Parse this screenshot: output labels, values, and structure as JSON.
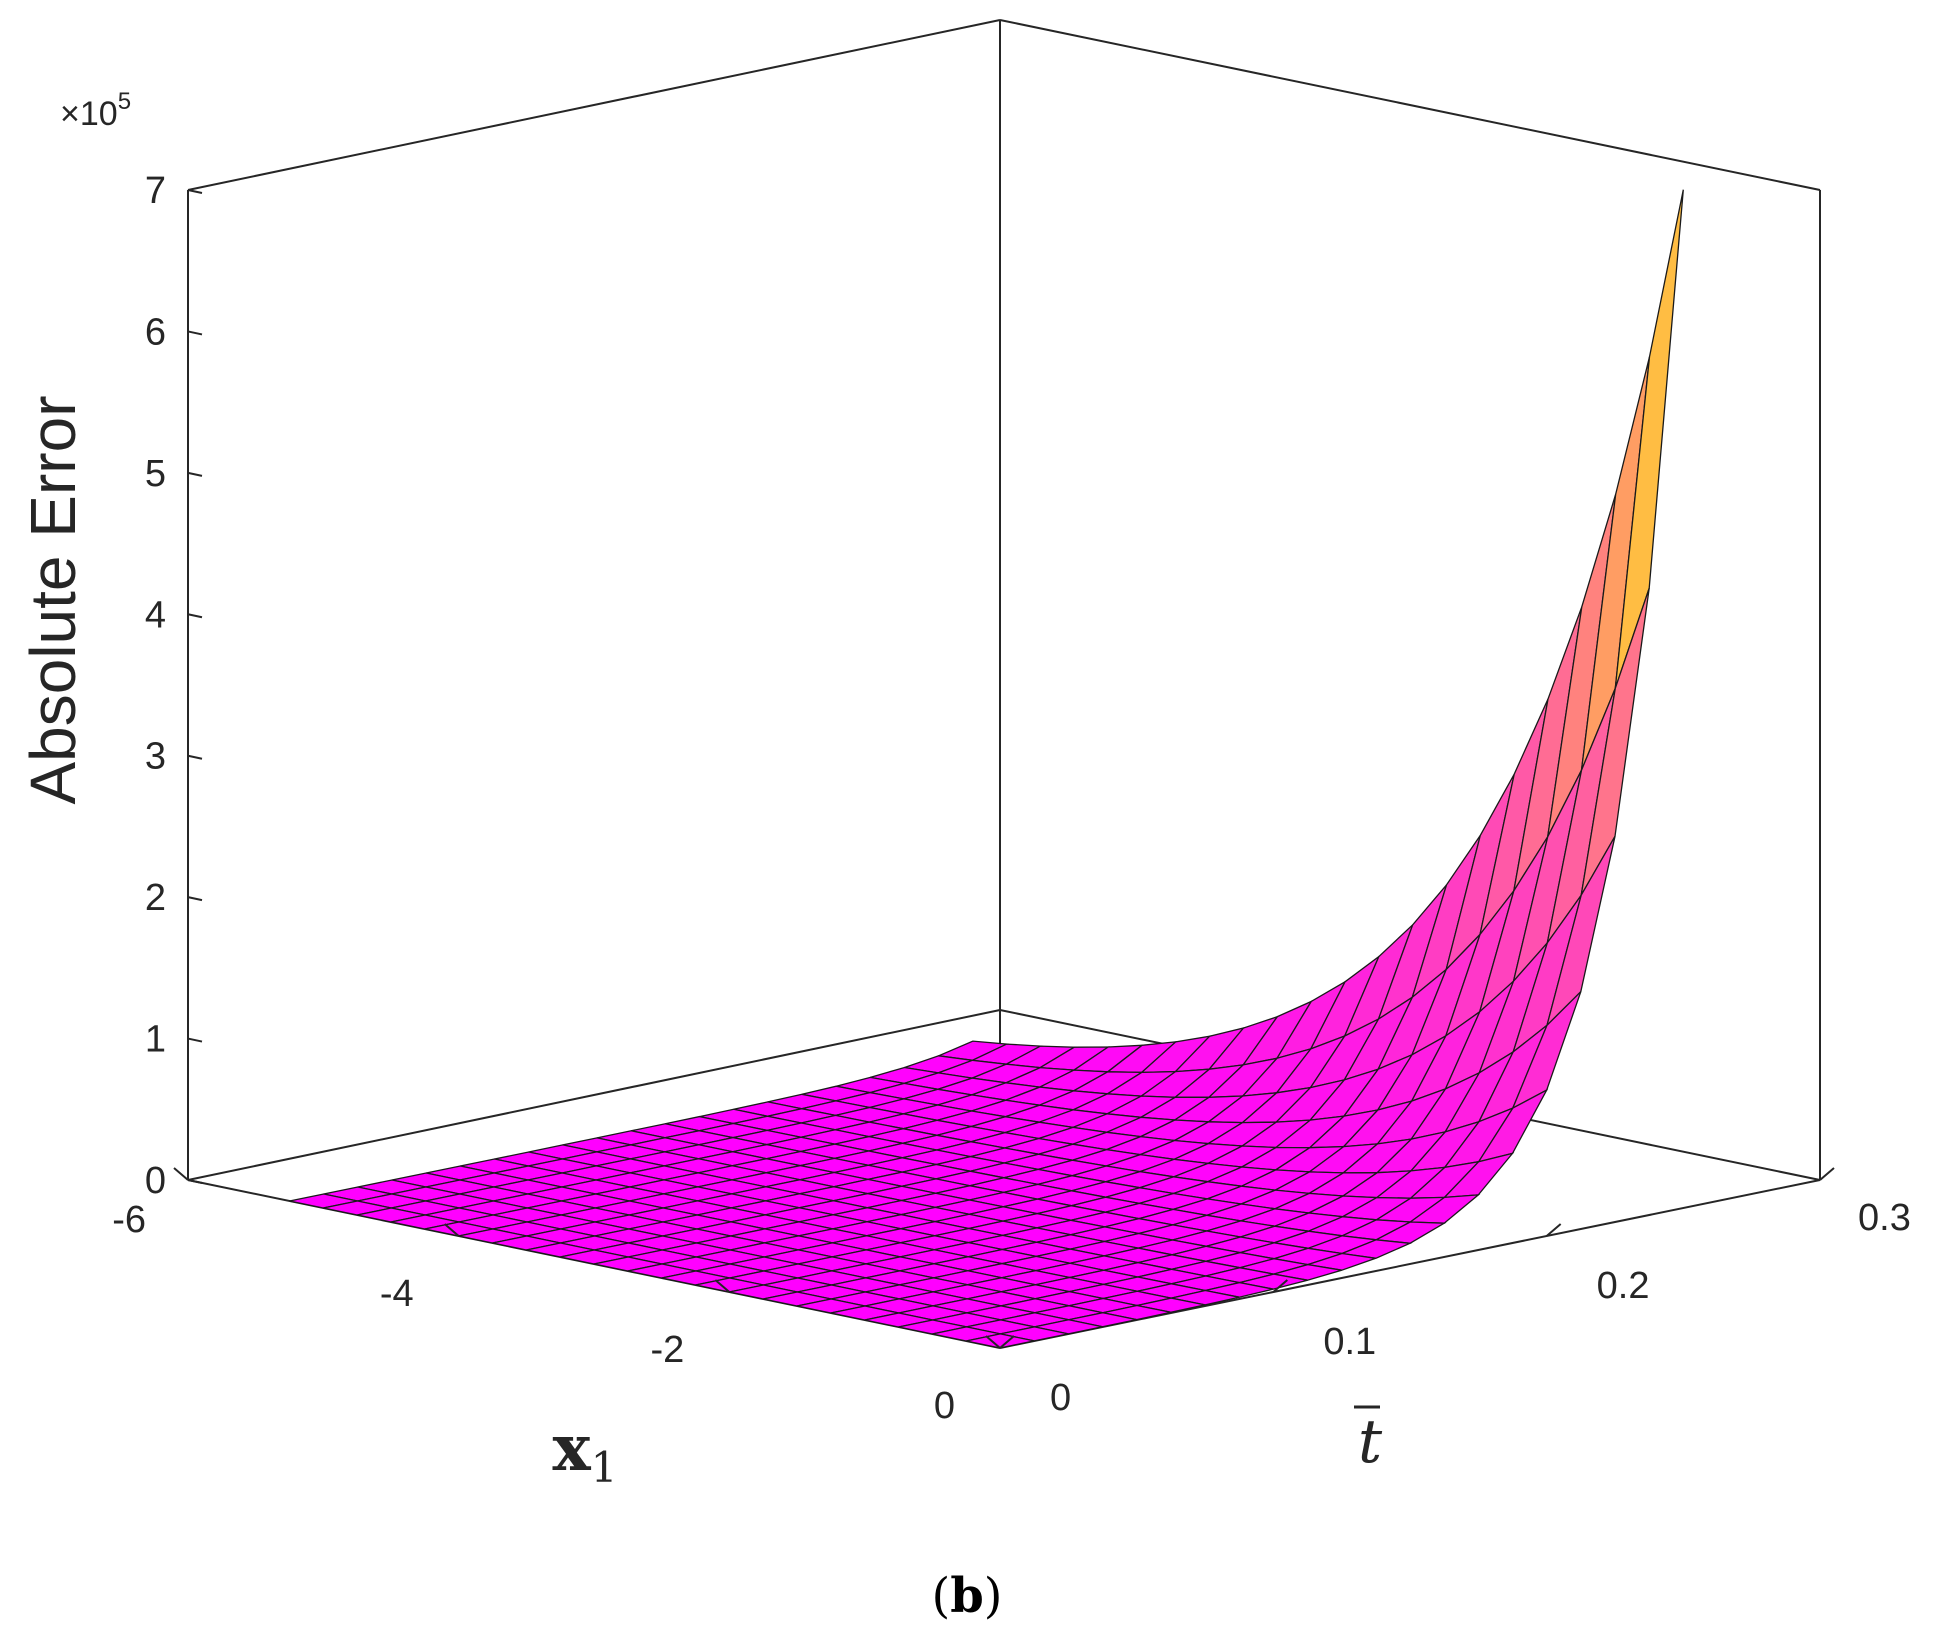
{
  "chart_data": {
    "type": "surface",
    "zlabel": "Absolute Error",
    "xlabel_main": "x",
    "xlabel_sub": "1",
    "ylabel": "t",
    "exponent_label": "×10",
    "exponent_power": "5",
    "caption": "(b)",
    "x_ticks": [
      "-6",
      "-4",
      "-2",
      "0"
    ],
    "y_ticks": [
      "0",
      "0.1",
      "0.2",
      "0.3"
    ],
    "z_ticks": [
      "0",
      "1",
      "2",
      "3",
      "4",
      "5",
      "6",
      "7"
    ],
    "x_range": [
      -6,
      0
    ],
    "y_range": [
      0,
      0.3
    ],
    "z_range": [
      0,
      700000
    ],
    "x_grid": [
      -5.25,
      -5,
      -4.75,
      -4.5,
      -4.25,
      -4,
      -3.75,
      -3.5,
      -3.25,
      -3,
      -2.75,
      -2.5,
      -2.25,
      -2,
      -1.75,
      -1.5,
      -1.25,
      -1,
      -0.75,
      -0.5,
      -0.25,
      0
    ],
    "t_grid": [
      0,
      0.0125,
      0.025,
      0.0375,
      0.05,
      0.0625,
      0.075,
      0.0875,
      0.1,
      0.1125,
      0.125,
      0.1375,
      0.15,
      0.1625,
      0.175,
      0.1875,
      0.2,
      0.2125,
      0.225,
      0.2375,
      0.25
    ],
    "peak_value": 720000,
    "colormap": [
      "#ff00ff",
      "#ff40c0",
      "#ff8080",
      "#ffc040",
      "#ffff00"
    ]
  }
}
